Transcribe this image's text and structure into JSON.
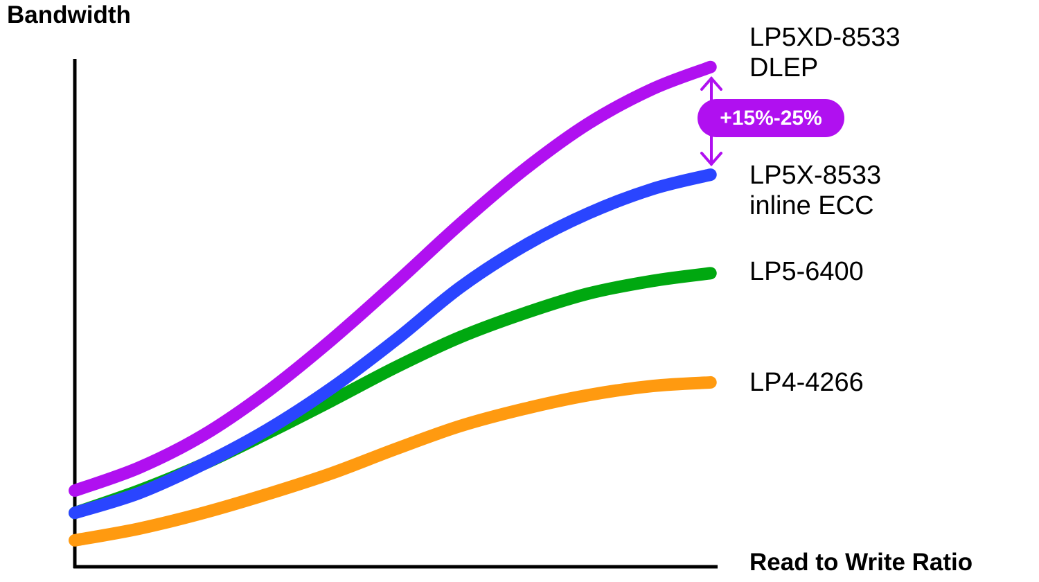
{
  "chart_data": {
    "type": "line",
    "title": "",
    "xlabel": "Read to Write Ratio",
    "ylabel": "Bandwidth",
    "xlim": [
      0,
      100
    ],
    "ylim": [
      0,
      100
    ],
    "grid": false,
    "ticks": false,
    "x": [
      0,
      10,
      20,
      30,
      40,
      50,
      60,
      70,
      80,
      90,
      99
    ],
    "series": [
      {
        "name": "LP5XD-8533 DLEP",
        "name_lines": [
          "LP5XD-8533",
          "DLEP"
        ],
        "color": "#b010f0",
        "values": [
          15.0,
          19.5,
          25.9,
          34.5,
          44.7,
          55.9,
          67.5,
          78.2,
          87.3,
          94.1,
          98.4
        ]
      },
      {
        "name": "LP5X-8533 inline ECC",
        "name_lines": [
          "LP5X-8533",
          "inline ECC"
        ],
        "color": "#2a45ff",
        "values": [
          10.6,
          14.5,
          20.2,
          27.0,
          35.2,
          44.7,
          55.0,
          63.2,
          69.6,
          74.4,
          77.2
        ]
      },
      {
        "name": "LP5-6400",
        "name_lines": [
          "LP5-6400"
        ],
        "color": "#00a810",
        "values": [
          10.6,
          15.0,
          20.2,
          26.3,
          32.7,
          39.3,
          45.2,
          49.9,
          53.8,
          56.3,
          57.8
        ]
      },
      {
        "name": "LP4-4266",
        "name_lines": [
          "LP4-4266"
        ],
        "color": "#ff9a10",
        "values": [
          5.2,
          7.5,
          10.6,
          14.3,
          18.4,
          23.2,
          27.7,
          31.1,
          33.8,
          35.6,
          36.3
        ]
      }
    ],
    "annotation": {
      "text": "+15%-25%",
      "color": "#b010f0",
      "between": [
        "LP5XD-8533 DLEP",
        "LP5X-8533 inline ECC"
      ]
    }
  }
}
